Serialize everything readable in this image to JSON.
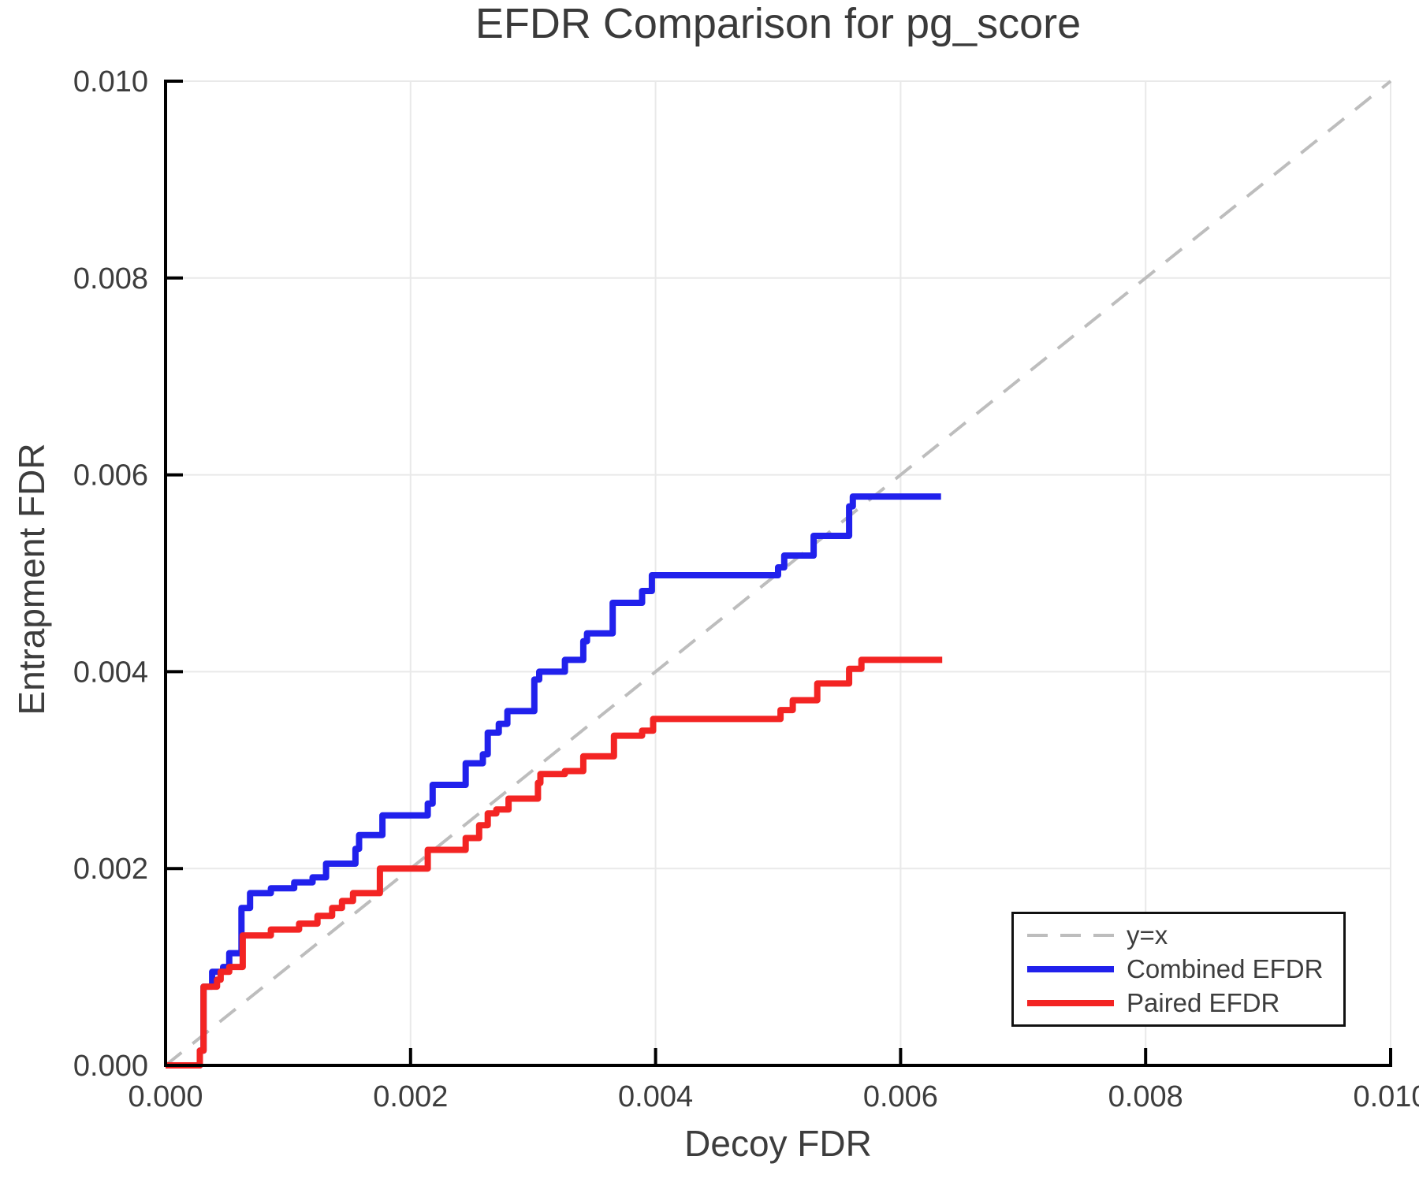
{
  "chart_data": {
    "type": "line",
    "title": "EFDR Comparison for pg_score",
    "xlabel": "Decoy FDR",
    "ylabel": "Entrapment FDR",
    "xlim": [
      0.0,
      0.01
    ],
    "ylim": [
      0.0,
      0.01
    ],
    "xticks": {
      "values": [
        0.0,
        0.002,
        0.004,
        0.006,
        0.008,
        0.01
      ],
      "labels": [
        "0.000",
        "0.002",
        "0.004",
        "0.006",
        "0.008",
        "0.010"
      ]
    },
    "yticks": {
      "values": [
        0.0,
        0.002,
        0.004,
        0.006,
        0.008,
        0.01
      ],
      "labels": [
        "0.000",
        "0.002",
        "0.004",
        "0.006",
        "0.008",
        "0.010"
      ]
    },
    "grid": true,
    "colors": {
      "grid": "#e9e9e9",
      "axis": "#000000",
      "text": "#3d3d3d",
      "reference": "#bdbdbd",
      "combined": "#2121ec",
      "paired": "#f32423"
    },
    "reference_line": {
      "label": "y=x",
      "from": [
        0.0,
        0.0
      ],
      "to": [
        0.01,
        0.01
      ],
      "style": "dashed"
    },
    "legend": {
      "position": "lower right",
      "entries": [
        {
          "label": "y=x",
          "color": "#bdbdbd",
          "dashed": true,
          "width": 4
        },
        {
          "label": "Combined EFDR",
          "color": "#2121ec",
          "dashed": false,
          "width": 8
        },
        {
          "label": "Paired EFDR",
          "color": "#f32423",
          "dashed": false,
          "width": 8
        }
      ]
    },
    "series": [
      {
        "name": "Combined EFDR",
        "color": "#2121ec",
        "step": "post",
        "points": [
          [
            0.0,
            0.0
          ],
          [
            0.00028,
            0.00015
          ],
          [
            0.00031,
            0.0008
          ],
          [
            0.00038,
            0.00095
          ],
          [
            0.00047,
            0.001
          ],
          [
            0.00052,
            0.00114
          ],
          [
            0.00062,
            0.0016
          ],
          [
            0.00069,
            0.00175
          ],
          [
            0.00086,
            0.0018
          ],
          [
            0.00105,
            0.00186
          ],
          [
            0.0012,
            0.00191
          ],
          [
            0.00131,
            0.00205
          ],
          [
            0.00155,
            0.0022
          ],
          [
            0.00158,
            0.00234
          ],
          [
            0.00177,
            0.00254
          ],
          [
            0.00214,
            0.00266
          ],
          [
            0.00218,
            0.00285
          ],
          [
            0.00245,
            0.00307
          ],
          [
            0.00259,
            0.00316
          ],
          [
            0.00263,
            0.00338
          ],
          [
            0.00272,
            0.00347
          ],
          [
            0.00279,
            0.0036
          ],
          [
            0.00301,
            0.00392
          ],
          [
            0.00305,
            0.004
          ],
          [
            0.00326,
            0.00412
          ],
          [
            0.00341,
            0.00431
          ],
          [
            0.00344,
            0.00439
          ],
          [
            0.00365,
            0.0047
          ],
          [
            0.00389,
            0.00482
          ],
          [
            0.00397,
            0.00498
          ],
          [
            0.005,
            0.00506
          ],
          [
            0.00505,
            0.00518
          ],
          [
            0.00529,
            0.00538
          ],
          [
            0.00558,
            0.00568
          ],
          [
            0.00561,
            0.00578
          ],
          [
            0.00633,
            0.00578
          ]
        ]
      },
      {
        "name": "Paired EFDR",
        "color": "#f32423",
        "step": "post",
        "points": [
          [
            0.0,
            0.0
          ],
          [
            0.00028,
            0.00015
          ],
          [
            0.00031,
            0.0008
          ],
          [
            0.00042,
            0.00087
          ],
          [
            0.00045,
            0.00095
          ],
          [
            0.00052,
            0.001
          ],
          [
            0.00063,
            0.00132
          ],
          [
            0.00086,
            0.00138
          ],
          [
            0.00109,
            0.00144
          ],
          [
            0.00124,
            0.00152
          ],
          [
            0.00136,
            0.0016
          ],
          [
            0.00144,
            0.00167
          ],
          [
            0.00153,
            0.00175
          ],
          [
            0.00175,
            0.002
          ],
          [
            0.00214,
            0.00219
          ],
          [
            0.00245,
            0.00231
          ],
          [
            0.00256,
            0.00244
          ],
          [
            0.00263,
            0.00256
          ],
          [
            0.0027,
            0.0026
          ],
          [
            0.0028,
            0.00271
          ],
          [
            0.00304,
            0.00287
          ],
          [
            0.00306,
            0.00296
          ],
          [
            0.00326,
            0.00299
          ],
          [
            0.00341,
            0.00314
          ],
          [
            0.00366,
            0.00335
          ],
          [
            0.00389,
            0.0034
          ],
          [
            0.00398,
            0.00352
          ],
          [
            0.00502,
            0.00361
          ],
          [
            0.00512,
            0.00371
          ],
          [
            0.00532,
            0.00388
          ],
          [
            0.00558,
            0.00403
          ],
          [
            0.00568,
            0.00412
          ],
          [
            0.00634,
            0.00412
          ]
        ]
      }
    ]
  }
}
